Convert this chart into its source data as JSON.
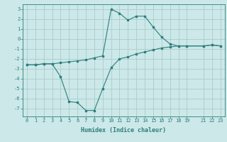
{
  "xlabel": "Humidex (Indice chaleur)",
  "ylabel": "",
  "bg_color": "#cce8e8",
  "grid_color": "#aacccc",
  "line_color": "#2e7d7d",
  "upper_x": [
    0,
    1,
    2,
    3,
    4,
    5,
    6,
    7,
    8,
    9,
    10,
    11,
    12,
    13,
    14,
    15,
    16,
    17,
    18,
    19,
    21,
    22,
    23
  ],
  "upper_y": [
    -2.6,
    -2.6,
    -2.5,
    -2.5,
    -2.4,
    -2.3,
    -2.2,
    -2.1,
    -1.9,
    -1.7,
    3.0,
    2.6,
    1.9,
    2.3,
    2.3,
    1.2,
    0.2,
    -0.5,
    -0.7,
    -0.7,
    -0.7,
    -0.6,
    -0.7
  ],
  "lower_x": [
    0,
    1,
    2,
    3,
    4,
    5,
    6,
    7,
    8,
    9,
    10,
    11,
    12,
    13,
    14,
    15,
    16,
    17,
    18,
    19,
    21,
    22,
    23
  ],
  "lower_y": [
    -2.6,
    -2.6,
    -2.5,
    -2.5,
    -3.8,
    -6.3,
    -6.4,
    -7.2,
    -7.2,
    -5.0,
    -2.9,
    -2.0,
    -1.8,
    -1.5,
    -1.3,
    -1.1,
    -0.9,
    -0.8,
    -0.7,
    -0.7,
    -0.7,
    -0.6,
    -0.7
  ],
  "ylim": [
    -7.8,
    3.5
  ],
  "xlim": [
    -0.5,
    23.5
  ],
  "yticks": [
    3,
    2,
    1,
    0,
    -1,
    -2,
    -3,
    -4,
    -5,
    -6,
    -7
  ],
  "xticks": [
    0,
    1,
    2,
    3,
    4,
    5,
    6,
    7,
    8,
    9,
    10,
    11,
    12,
    13,
    14,
    15,
    16,
    17,
    18,
    19,
    21,
    22,
    23
  ],
  "tick_fontsize": 5.0,
  "xlabel_fontsize": 6.0,
  "linewidth": 0.8,
  "markersize": 2.0
}
